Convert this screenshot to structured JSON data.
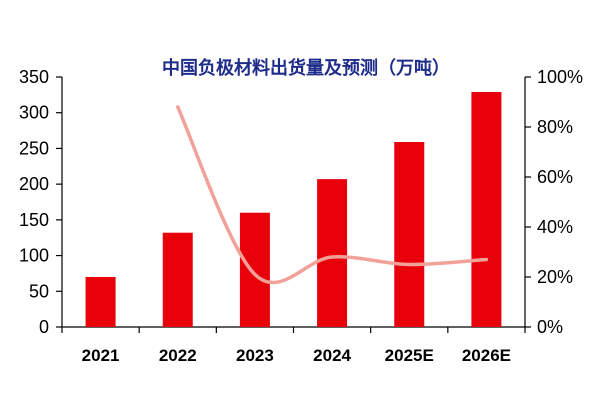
{
  "colors": {
    "title": "#1f2d8a",
    "bar": "#e8000b",
    "line": "#f2a199",
    "axis": "#000000"
  },
  "chart_data": {
    "type": "bar",
    "title": "中国负极材料出货量及预测（万吨）",
    "categories": [
      "2021",
      "2022",
      "2023",
      "2024",
      "2025E",
      "2026E"
    ],
    "series": [
      {
        "type": "bar",
        "axis": "left",
        "values": [
          70,
          132,
          160,
          207,
          259,
          329
        ]
      },
      {
        "type": "line",
        "axis": "right",
        "smooth": true,
        "values": [
          null,
          88,
          21,
          28,
          25,
          27
        ]
      }
    ],
    "y_left": {
      "min": 0,
      "max": 350,
      "ticks": [
        "0",
        "50",
        "100",
        "150",
        "200",
        "250",
        "300",
        "350"
      ]
    },
    "y_right": {
      "min": 0,
      "max": 100,
      "ticks": [
        "0%",
        "20%",
        "40%",
        "60%",
        "80%",
        "100%"
      ]
    },
    "grid": false,
    "legend": "none"
  }
}
